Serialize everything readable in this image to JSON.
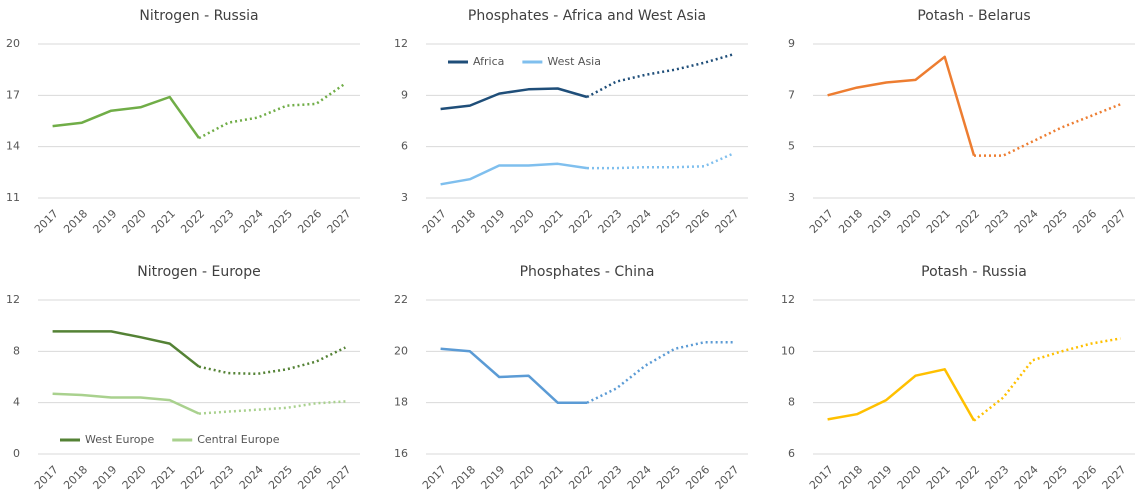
{
  "chart_data": [
    {
      "type": "line",
      "title": "Nitrogen - Russia",
      "categories": [
        "2017",
        "2018",
        "2019",
        "2020",
        "2021",
        "2022",
        "2023",
        "2024",
        "2025",
        "2026",
        "2027"
      ],
      "dashed_from": "2022",
      "series": [
        {
          "name": "Russia",
          "color": "#70ad47",
          "values": [
            15.2,
            15.4,
            16.1,
            16.3,
            16.9,
            14.5,
            15.4,
            15.7,
            16.4,
            16.5,
            17.7
          ]
        }
      ],
      "ylim": [
        11,
        20
      ],
      "yticks": [
        11,
        14,
        17,
        20
      ],
      "grid": true
    },
    {
      "type": "line",
      "title": "Phosphates - Africa and West Asia",
      "categories": [
        "2017",
        "2018",
        "2019",
        "2020",
        "2021",
        "2022",
        "2023",
        "2024",
        "2025",
        "2026",
        "2027"
      ],
      "dashed_from": "2022",
      "series": [
        {
          "name": "Africa",
          "color": "#1f4e79",
          "values": [
            8.2,
            8.4,
            9.1,
            9.35,
            9.4,
            8.9,
            9.8,
            10.2,
            10.5,
            10.9,
            11.4
          ]
        },
        {
          "name": "West Asia",
          "color": "#7fbfee",
          "values": [
            3.8,
            4.1,
            4.9,
            4.9,
            5.0,
            4.75,
            4.75,
            4.8,
            4.8,
            4.85,
            5.6
          ]
        }
      ],
      "ylim": [
        3,
        12
      ],
      "yticks": [
        3,
        6,
        9,
        12
      ],
      "grid": true,
      "legend": "upper left"
    },
    {
      "type": "line",
      "title": "Potash - Belarus",
      "categories": [
        "2017",
        "2018",
        "2019",
        "2020",
        "2021",
        "2022",
        "2023",
        "2024",
        "2025",
        "2026",
        "2027"
      ],
      "dashed_from": "2022",
      "series": [
        {
          "name": "Belarus",
          "color": "#ed7d31",
          "values": [
            7.0,
            7.3,
            7.5,
            7.6,
            8.5,
            4.65,
            4.65,
            5.2,
            5.75,
            6.2,
            6.65
          ]
        }
      ],
      "ylim": [
        3,
        9
      ],
      "yticks": [
        3,
        5,
        7,
        9
      ],
      "grid": true
    },
    {
      "type": "line",
      "title": "Nitrogen - Europe",
      "categories": [
        "2017",
        "2018",
        "2019",
        "2020",
        "2021",
        "2022",
        "2023",
        "2024",
        "2025",
        "2026",
        "2027"
      ],
      "dashed_from": "2022",
      "series": [
        {
          "name": "West Europe",
          "color": "#548235",
          "values": [
            9.55,
            9.55,
            9.55,
            9.1,
            8.6,
            6.8,
            6.3,
            6.25,
            6.6,
            7.2,
            8.3
          ]
        },
        {
          "name": "Central Europe",
          "color": "#a9d18e",
          "values": [
            4.7,
            4.6,
            4.4,
            4.4,
            4.2,
            3.15,
            3.3,
            3.45,
            3.6,
            3.95,
            4.1
          ]
        }
      ],
      "ylim": [
        0,
        12
      ],
      "yticks": [
        0,
        4,
        8,
        12
      ],
      "grid": true,
      "legend": "lower left"
    },
    {
      "type": "line",
      "title": "Phosphates - China",
      "categories": [
        "2017",
        "2018",
        "2019",
        "2020",
        "2021",
        "2022",
        "2023",
        "2024",
        "2025",
        "2026",
        "2027"
      ],
      "dashed_from": "2022",
      "series": [
        {
          "name": "China",
          "color": "#5b9bd5",
          "values": [
            20.1,
            20.0,
            19.0,
            19.05,
            18.0,
            18.0,
            18.55,
            19.45,
            20.1,
            20.35,
            20.35
          ]
        }
      ],
      "ylim": [
        16,
        22
      ],
      "yticks": [
        16,
        18,
        20,
        22
      ],
      "grid": true
    },
    {
      "type": "line",
      "title": "Potash - Russia",
      "categories": [
        "2017",
        "2018",
        "2019",
        "2020",
        "2021",
        "2022",
        "2023",
        "2024",
        "2025",
        "2026",
        "2027"
      ],
      "dashed_from": "2022",
      "series": [
        {
          "name": "Russia",
          "color": "#ffc000",
          "values": [
            7.35,
            7.55,
            8.1,
            9.05,
            9.3,
            7.3,
            8.2,
            9.65,
            10.0,
            10.3,
            10.5
          ]
        }
      ],
      "ylim": [
        6,
        12
      ],
      "yticks": [
        6,
        8,
        10,
        12
      ],
      "grid": true
    }
  ]
}
